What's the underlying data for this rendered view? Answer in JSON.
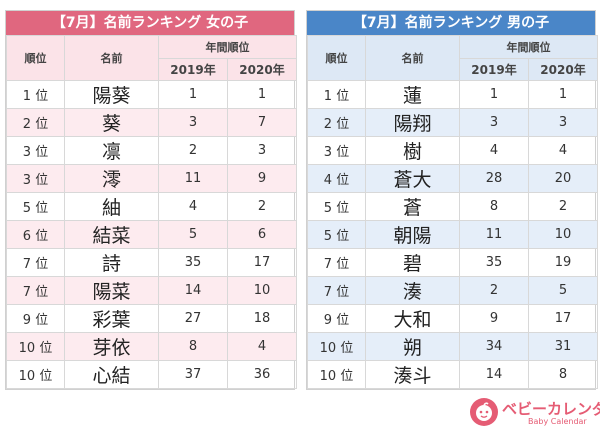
{
  "chart_data": [
    {
      "type": "table",
      "title": "【7月】名前ランキング 女の子",
      "header": {
        "rank": "順位",
        "name": "名前",
        "group": "年間順位",
        "years": [
          "2019年",
          "2020年"
        ]
      },
      "rows": [
        {
          "rank": "1 位",
          "name": "陽葵",
          "y2019": 1,
          "y2020": 1
        },
        {
          "rank": "2 位",
          "name": "葵",
          "y2019": 3,
          "y2020": 7
        },
        {
          "rank": "3 位",
          "name": "凛",
          "y2019": 2,
          "y2020": 3
        },
        {
          "rank": "3 位",
          "name": "澪",
          "y2019": 11,
          "y2020": 9
        },
        {
          "rank": "5 位",
          "name": "紬",
          "y2019": 4,
          "y2020": 2
        },
        {
          "rank": "6 位",
          "name": "結菜",
          "y2019": 5,
          "y2020": 6
        },
        {
          "rank": "7 位",
          "name": "詩",
          "y2019": 35,
          "y2020": 17
        },
        {
          "rank": "7 位",
          "name": "陽菜",
          "y2019": 14,
          "y2020": 10
        },
        {
          "rank": "9 位",
          "name": "彩葉",
          "y2019": 27,
          "y2020": 18
        },
        {
          "rank": "10 位",
          "name": "芽依",
          "y2019": 8,
          "y2020": 4
        },
        {
          "rank": "10 位",
          "name": "心結",
          "y2019": 37,
          "y2020": 36
        }
      ]
    },
    {
      "type": "table",
      "title": "【7月】名前ランキング 男の子",
      "header": {
        "rank": "順位",
        "name": "名前",
        "group": "年間順位",
        "years": [
          "2019年",
          "2020年"
        ]
      },
      "rows": [
        {
          "rank": "1 位",
          "name": "蓮",
          "y2019": 1,
          "y2020": 1
        },
        {
          "rank": "2 位",
          "name": "陽翔",
          "y2019": 3,
          "y2020": 3
        },
        {
          "rank": "3 位",
          "name": "樹",
          "y2019": 4,
          "y2020": 4
        },
        {
          "rank": "4 位",
          "name": "蒼大",
          "y2019": 28,
          "y2020": 20
        },
        {
          "rank": "5 位",
          "name": "蒼",
          "y2019": 8,
          "y2020": 2
        },
        {
          "rank": "5 位",
          "name": "朝陽",
          "y2019": 11,
          "y2020": 10
        },
        {
          "rank": "7 位",
          "name": "碧",
          "y2019": 35,
          "y2020": 19
        },
        {
          "rank": "7 位",
          "name": "湊",
          "y2019": 2,
          "y2020": 5
        },
        {
          "rank": "9 位",
          "name": "大和",
          "y2019": 9,
          "y2020": 17
        },
        {
          "rank": "10 位",
          "name": "朔",
          "y2019": 34,
          "y2020": 31
        },
        {
          "rank": "10 位",
          "name": "湊斗",
          "y2019": 14,
          "y2020": 8
        }
      ]
    }
  ],
  "colors": {
    "girls_accent": "#e0677f",
    "boys_accent": "#4a86c8"
  },
  "logo": {
    "icon": "baby-face-icon",
    "text_jp": "ベビーカレンダー",
    "text_en": "Baby Calendar"
  }
}
